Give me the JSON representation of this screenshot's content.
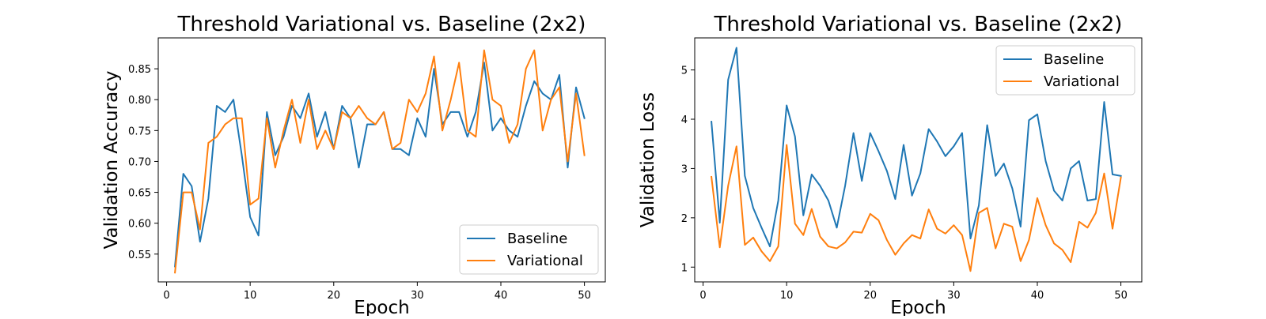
{
  "colors": {
    "series1": "#1f77b4",
    "series2": "#ff7f0e"
  },
  "chart_data": [
    {
      "type": "line",
      "title": "Threshold Variational vs. Baseline (2x2)",
      "xlabel": "Epoch",
      "ylabel": "Validation Accuracy",
      "xlim": [
        -1,
        52.5
      ],
      "ylim": [
        0.505,
        0.9
      ],
      "xticks": [
        0,
        10,
        20,
        30,
        40,
        50
      ],
      "yticks": [
        0.55,
        0.6,
        0.65,
        0.7,
        0.75,
        0.8,
        0.85
      ],
      "ytick_decimals": 2,
      "grid": false,
      "legend_position": "lower-right",
      "x": [
        1,
        2,
        3,
        4,
        5,
        6,
        7,
        8,
        9,
        10,
        11,
        12,
        13,
        14,
        15,
        16,
        17,
        18,
        19,
        20,
        21,
        22,
        23,
        24,
        25,
        26,
        27,
        28,
        29,
        30,
        31,
        32,
        33,
        34,
        35,
        36,
        37,
        38,
        39,
        40,
        41,
        42,
        43,
        44,
        45,
        46,
        47,
        48,
        49,
        50
      ],
      "series": [
        {
          "name": "Baseline",
          "color": "#1f77b4",
          "values": [
            0.53,
            0.68,
            0.66,
            0.57,
            0.64,
            0.79,
            0.78,
            0.8,
            0.71,
            0.61,
            0.58,
            0.78,
            0.71,
            0.74,
            0.79,
            0.77,
            0.81,
            0.74,
            0.78,
            0.72,
            0.79,
            0.77,
            0.69,
            0.76,
            0.76,
            0.78,
            0.72,
            0.72,
            0.71,
            0.77,
            0.74,
            0.85,
            0.76,
            0.78,
            0.78,
            0.74,
            0.78,
            0.86,
            0.75,
            0.77,
            0.75,
            0.74,
            0.79,
            0.83,
            0.81,
            0.8,
            0.84,
            0.69,
            0.82,
            0.77
          ]
        },
        {
          "name": "Variational",
          "color": "#ff7f0e",
          "values": [
            0.52,
            0.65,
            0.65,
            0.59,
            0.73,
            0.74,
            0.76,
            0.77,
            0.77,
            0.63,
            0.64,
            0.77,
            0.69,
            0.75,
            0.8,
            0.73,
            0.8,
            0.72,
            0.75,
            0.72,
            0.78,
            0.77,
            0.79,
            0.77,
            0.76,
            0.78,
            0.72,
            0.73,
            0.8,
            0.78,
            0.81,
            0.87,
            0.75,
            0.8,
            0.86,
            0.75,
            0.74,
            0.88,
            0.8,
            0.79,
            0.73,
            0.76,
            0.85,
            0.88,
            0.75,
            0.8,
            0.82,
            0.7,
            0.81,
            0.71
          ]
        }
      ]
    },
    {
      "type": "line",
      "title": "Threshold Variational vs. Baseline (2x2)",
      "xlabel": "Epoch",
      "ylabel": "Validation Loss",
      "xlim": [
        -1,
        52.5
      ],
      "ylim": [
        0.7,
        5.65
      ],
      "xticks": [
        0,
        10,
        20,
        30,
        40,
        50
      ],
      "yticks": [
        1,
        2,
        3,
        4,
        5
      ],
      "ytick_decimals": 0,
      "grid": false,
      "legend_position": "upper-right",
      "x": [
        1,
        2,
        3,
        4,
        5,
        6,
        7,
        8,
        9,
        10,
        11,
        12,
        13,
        14,
        15,
        16,
        17,
        18,
        19,
        20,
        21,
        22,
        23,
        24,
        25,
        26,
        27,
        28,
        29,
        30,
        31,
        32,
        33,
        34,
        35,
        36,
        37,
        38,
        39,
        40,
        41,
        42,
        43,
        44,
        45,
        46,
        47,
        48,
        49,
        50
      ],
      "series": [
        {
          "name": "Baseline",
          "color": "#1f77b4",
          "values": [
            3.95,
            1.9,
            4.8,
            5.45,
            2.85,
            2.2,
            1.8,
            1.42,
            2.35,
            4.28,
            3.65,
            2.05,
            2.88,
            2.65,
            2.35,
            1.8,
            2.65,
            3.72,
            2.75,
            3.72,
            3.35,
            2.95,
            2.38,
            3.48,
            2.45,
            2.9,
            3.8,
            3.55,
            3.25,
            3.45,
            3.72,
            1.58,
            2.25,
            3.88,
            2.85,
            3.1,
            2.6,
            1.82,
            3.98,
            4.1,
            3.15,
            2.55,
            2.35,
            3.0,
            3.15,
            2.35,
            2.38,
            4.35,
            2.88,
            2.85
          ]
        },
        {
          "name": "Variational",
          "color": "#ff7f0e",
          "values": [
            2.83,
            1.4,
            2.65,
            3.45,
            1.45,
            1.6,
            1.32,
            1.12,
            1.42,
            3.48,
            1.88,
            1.65,
            2.18,
            1.62,
            1.42,
            1.38,
            1.5,
            1.72,
            1.7,
            2.08,
            1.95,
            1.55,
            1.25,
            1.48,
            1.65,
            1.58,
            2.17,
            1.78,
            1.68,
            1.85,
            1.65,
            0.92,
            2.1,
            2.2,
            1.38,
            1.88,
            1.82,
            1.12,
            1.55,
            2.4,
            1.85,
            1.48,
            1.35,
            1.1,
            1.92,
            1.8,
            2.1,
            2.9,
            1.78,
            2.82
          ]
        }
      ]
    }
  ]
}
